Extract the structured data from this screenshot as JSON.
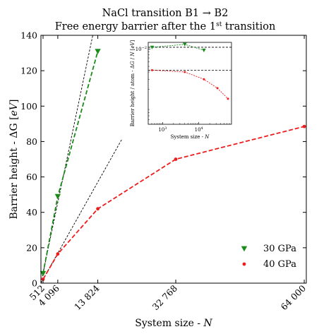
{
  "chart_data": [
    {
      "type": "line",
      "title": "NaCl transition B1 → B2",
      "subtitle": "Free energy barrier after the 1st transition",
      "subtitle_parts": {
        "before": "Free energy barrier after the 1",
        "sup": "st",
        "after": " transition"
      },
      "xlabel": "System size - N",
      "xlabel_parts": {
        "text": "System size - ",
        "var": "N"
      },
      "ylabel": "Barrier height - ΔG [eV]",
      "ylabel_parts": {
        "text": "Barrier height - ΔG [",
        "unit": "eV",
        "close": "]"
      },
      "xlim": [
        0,
        64500
      ],
      "ylim": [
        0,
        140
      ],
      "xticks": [
        512,
        4096,
        13824,
        32768,
        64000
      ],
      "xtick_labels": [
        "512",
        "4 096",
        "13 824",
        "32 768",
        "64 000"
      ],
      "yticks": [
        0,
        20,
        40,
        60,
        80,
        100,
        120,
        140
      ],
      "ytick_labels": [
        "0",
        "20",
        "40",
        "60",
        "80",
        "100",
        "120",
        "140"
      ],
      "grid": false,
      "legend_position": "lower-right",
      "series": [
        {
          "name": "30 GPa",
          "color": "#1a8a1a",
          "marker": "triangle-down",
          "line": "dashed",
          "x": [
            512,
            4096,
            13824
          ],
          "y": [
            5.5,
            49,
            131
          ]
        },
        {
          "name": "40 GPa",
          "color": "#ee1c1c",
          "marker": "circle",
          "line": "dashed",
          "x": [
            512,
            4096,
            13824,
            32768,
            64000
          ],
          "y": [
            2.2,
            16.5,
            42,
            70,
            88.5
          ]
        }
      ],
      "reference_lines": [
        {
          "color": "#000000",
          "style": "dashed",
          "x": [
            0,
            12600
          ],
          "y": [
            0,
            140
          ]
        },
        {
          "color": "#000000",
          "style": "dashed",
          "x": [
            0,
            19600
          ],
          "y": [
            0,
            81
          ]
        }
      ]
    },
    {
      "type": "line",
      "inset": true,
      "xlabel": "System size - N",
      "xlabel_parts": {
        "text": "System size - ",
        "var": "N"
      },
      "ylabel": "Barrier height / atom - ΔG / N [eV]",
      "ylabel_parts": {
        "text": "Barrier height / atom - ΔG / ",
        "var": "N",
        "open": " [",
        "unit": "eV",
        "close": "]"
      },
      "xscale": "log",
      "yscale": "log",
      "xlim": [
        400,
        80000
      ],
      "ylim": [
        0.0005,
        0.013
      ],
      "xticks": [
        1000,
        10000
      ],
      "xtick_labels": [
        "10³",
        "10⁴"
      ],
      "xtick_parts": [
        {
          "base": "10",
          "exp": "3"
        },
        {
          "base": "10",
          "exp": "4"
        }
      ],
      "yticks": [
        0.01
      ],
      "ytick_labels": [
        "10⁻²"
      ],
      "ytick_parts": [
        {
          "base": "10",
          "exp": "−2"
        }
      ],
      "series": [
        {
          "name": "30 GPa",
          "color": "#1a8a1a",
          "marker": "triangle-down",
          "line": "dashed",
          "x": [
            512,
            4096,
            13824
          ],
          "y": [
            0.0107,
            0.012,
            0.0095
          ]
        },
        {
          "name": "40 GPa",
          "color": "#ee1c1c",
          "marker": "circle",
          "line": "dashed",
          "x": [
            512,
            4096,
            13824,
            32768,
            64000
          ],
          "y": [
            0.0043,
            0.004,
            0.003,
            0.0021,
            0.00138
          ]
        }
      ],
      "reference_lines": [
        {
          "color": "#000000",
          "style": "dashed",
          "orientation": "horizontal",
          "y": 0.0107
        },
        {
          "color": "#000000",
          "style": "dashed",
          "orientation": "horizontal",
          "y": 0.0043
        }
      ]
    }
  ]
}
